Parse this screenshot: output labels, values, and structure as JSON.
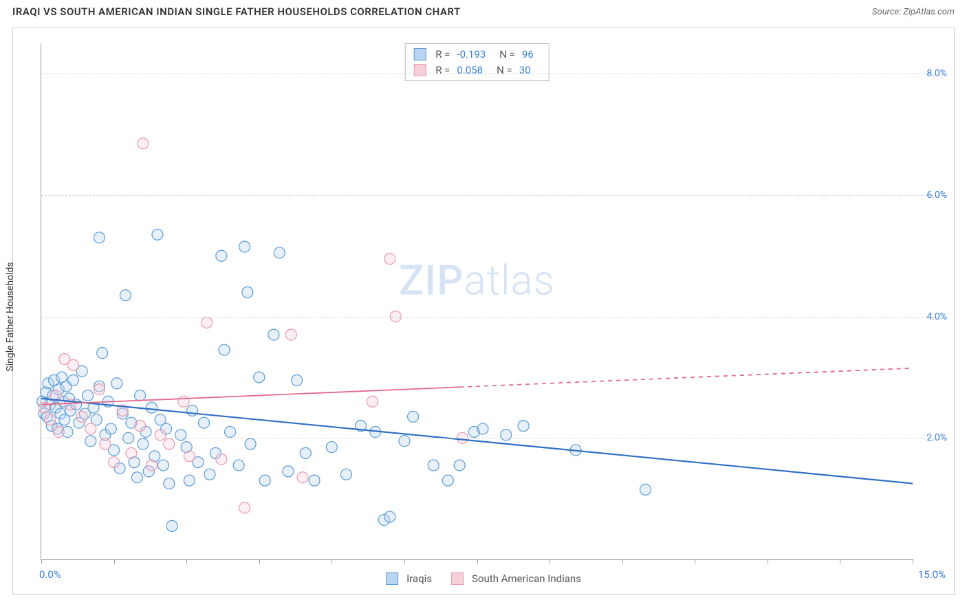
{
  "header": {
    "title": "IRAQI VS SOUTH AMERICAN INDIAN SINGLE FATHER HOUSEHOLDS CORRELATION CHART",
    "source": "Source: ZipAtlas.com"
  },
  "chart": {
    "type": "scatter",
    "y_axis_label": "Single Father Households",
    "xlim": [
      0,
      15
    ],
    "ylim": [
      0,
      8.5
    ],
    "x_origin_label": "0.0%",
    "x_max_label": "15.0%",
    "y_ticks": [
      {
        "value": 2.0,
        "label": "2.0%"
      },
      {
        "value": 4.0,
        "label": "4.0%"
      },
      {
        "value": 6.0,
        "label": "6.0%"
      },
      {
        "value": 8.0,
        "label": "8.0%"
      }
    ],
    "x_tick_positions": [
      0,
      1.25,
      2.5,
      3.75,
      5.0,
      6.25,
      7.5,
      8.75,
      10.0,
      11.25,
      12.5,
      13.75,
      15.0
    ],
    "background_color": "#ffffff",
    "grid_color": "#d5d5d5",
    "axis_color": "#999999",
    "tick_label_color": "#3b7dd8",
    "marker_radius": 8,
    "marker_fill_opacity": 0.35,
    "marker_stroke_width": 1.2,
    "watermark": {
      "text_bold": "ZIP",
      "text_light": "atlas",
      "color": "#d6e3f5",
      "fontsize": 60
    },
    "series": [
      {
        "name": "Iraqis",
        "color_stroke": "#5a9bd5",
        "color_fill": "#b9d4ef",
        "trend": {
          "x1": 0,
          "y1": 2.65,
          "x2": 15,
          "y2": 1.25,
          "stroke": "#2f6fc5",
          "width": 2.2,
          "dash_after_x": null
        },
        "R": "-0.193",
        "N": "96",
        "points": [
          [
            0.02,
            2.6
          ],
          [
            0.05,
            2.4
          ],
          [
            0.08,
            2.75
          ],
          [
            0.1,
            2.35
          ],
          [
            0.12,
            2.9
          ],
          [
            0.15,
            2.55
          ],
          [
            0.18,
            2.2
          ],
          [
            0.2,
            2.7
          ],
          [
            0.22,
            2.95
          ],
          [
            0.25,
            2.5
          ],
          [
            0.28,
            2.15
          ],
          [
            0.3,
            2.8
          ],
          [
            0.33,
            2.4
          ],
          [
            0.35,
            3.0
          ],
          [
            0.38,
            2.6
          ],
          [
            0.4,
            2.3
          ],
          [
            0.43,
            2.85
          ],
          [
            0.45,
            2.1
          ],
          [
            0.48,
            2.65
          ],
          [
            0.5,
            2.45
          ],
          [
            0.55,
            2.95
          ],
          [
            0.6,
            2.55
          ],
          [
            0.65,
            2.25
          ],
          [
            0.7,
            3.1
          ],
          [
            0.75,
            2.4
          ],
          [
            0.8,
            2.7
          ],
          [
            0.85,
            1.95
          ],
          [
            0.9,
            2.5
          ],
          [
            0.95,
            2.3
          ],
          [
            1.0,
            2.85
          ],
          [
            1.0,
            5.3
          ],
          [
            1.05,
            3.4
          ],
          [
            1.1,
            2.05
          ],
          [
            1.15,
            2.6
          ],
          [
            1.2,
            2.15
          ],
          [
            1.25,
            1.8
          ],
          [
            1.3,
            2.9
          ],
          [
            1.35,
            1.5
          ],
          [
            1.4,
            2.4
          ],
          [
            1.45,
            4.35
          ],
          [
            1.5,
            2.0
          ],
          [
            1.55,
            2.25
          ],
          [
            1.6,
            1.6
          ],
          [
            1.65,
            1.35
          ],
          [
            1.7,
            2.7
          ],
          [
            1.75,
            1.9
          ],
          [
            1.8,
            2.1
          ],
          [
            1.85,
            1.45
          ],
          [
            1.9,
            2.5
          ],
          [
            1.95,
            1.7
          ],
          [
            2.0,
            5.35
          ],
          [
            2.05,
            2.3
          ],
          [
            2.1,
            1.55
          ],
          [
            2.15,
            2.15
          ],
          [
            2.2,
            1.25
          ],
          [
            2.25,
            0.55
          ],
          [
            2.4,
            2.05
          ],
          [
            2.5,
            1.85
          ],
          [
            2.55,
            1.3
          ],
          [
            2.6,
            2.45
          ],
          [
            2.7,
            1.6
          ],
          [
            2.8,
            2.25
          ],
          [
            2.9,
            1.4
          ],
          [
            3.0,
            1.75
          ],
          [
            3.1,
            5.0
          ],
          [
            3.15,
            3.45
          ],
          [
            3.25,
            2.1
          ],
          [
            3.4,
            1.55
          ],
          [
            3.5,
            5.15
          ],
          [
            3.55,
            4.4
          ],
          [
            3.6,
            1.9
          ],
          [
            3.75,
            3.0
          ],
          [
            3.85,
            1.3
          ],
          [
            4.0,
            3.7
          ],
          [
            4.1,
            5.05
          ],
          [
            4.25,
            1.45
          ],
          [
            4.4,
            2.95
          ],
          [
            4.55,
            1.75
          ],
          [
            4.7,
            1.3
          ],
          [
            5.0,
            1.85
          ],
          [
            5.25,
            1.4
          ],
          [
            5.5,
            2.2
          ],
          [
            5.75,
            2.1
          ],
          [
            5.9,
            0.65
          ],
          [
            6.25,
            1.95
          ],
          [
            6.4,
            2.35
          ],
          [
            6.75,
            1.55
          ],
          [
            7.0,
            1.3
          ],
          [
            7.45,
            2.1
          ],
          [
            7.6,
            2.15
          ],
          [
            8.0,
            2.05
          ],
          [
            8.3,
            2.2
          ],
          [
            9.2,
            1.8
          ],
          [
            10.4,
            1.15
          ],
          [
            7.2,
            1.55
          ],
          [
            6.0,
            0.7
          ]
        ]
      },
      {
        "name": "South American Indians",
        "color_stroke": "#e89aae",
        "color_fill": "#f6cfd9",
        "trend": {
          "x1": 0,
          "y1": 2.55,
          "x2": 15,
          "y2": 3.15,
          "stroke": "#e26a8b",
          "width": 1.8,
          "dash_after_x": 7.2
        },
        "R": "0.058",
        "N": "30",
        "points": [
          [
            0.05,
            2.5
          ],
          [
            0.15,
            2.3
          ],
          [
            0.25,
            2.7
          ],
          [
            0.3,
            2.1
          ],
          [
            0.4,
            3.3
          ],
          [
            0.5,
            2.55
          ],
          [
            0.55,
            3.2
          ],
          [
            0.7,
            2.35
          ],
          [
            0.85,
            2.15
          ],
          [
            1.0,
            2.8
          ],
          [
            1.1,
            1.9
          ],
          [
            1.25,
            1.6
          ],
          [
            1.4,
            2.45
          ],
          [
            1.55,
            1.75
          ],
          [
            1.7,
            2.2
          ],
          [
            1.75,
            6.85
          ],
          [
            1.9,
            1.55
          ],
          [
            2.05,
            2.05
          ],
          [
            2.2,
            1.9
          ],
          [
            2.45,
            2.6
          ],
          [
            2.55,
            1.7
          ],
          [
            2.85,
            3.9
          ],
          [
            3.1,
            1.65
          ],
          [
            3.5,
            0.85
          ],
          [
            4.3,
            3.7
          ],
          [
            4.5,
            1.35
          ],
          [
            5.7,
            2.6
          ],
          [
            6.0,
            4.95
          ],
          [
            6.1,
            4.0
          ],
          [
            7.25,
            2.0
          ]
        ]
      }
    ],
    "legend_top": {
      "rows": [
        {
          "swatch_fill": "#b9d4ef",
          "swatch_stroke": "#5a9bd5",
          "R_label": "R =",
          "R_value": "-0.193",
          "N_label": "N =",
          "N_value": "96"
        },
        {
          "swatch_fill": "#f6cfd9",
          "swatch_stroke": "#e89aae",
          "R_label": "R =",
          "R_value": "0.058",
          "N_label": "N =",
          "N_value": "30"
        }
      ]
    },
    "legend_bottom": {
      "items": [
        {
          "swatch_fill": "#b9d4ef",
          "swatch_stroke": "#5a9bd5",
          "label": "Iraqis"
        },
        {
          "swatch_fill": "#f6cfd9",
          "swatch_stroke": "#e89aae",
          "label": "South American Indians"
        }
      ]
    }
  }
}
